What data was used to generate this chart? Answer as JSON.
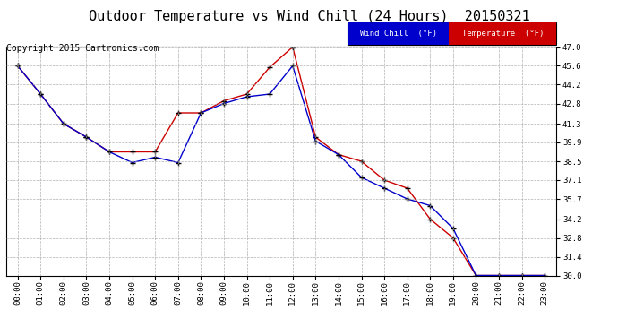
{
  "title": "Outdoor Temperature vs Wind Chill (24 Hours)  20150321",
  "copyright": "Copyright 2015 Cartronics.com",
  "background_color": "#ffffff",
  "plot_bg_color": "#ffffff",
  "grid_color": "#aaaaaa",
  "x_labels": [
    "00:00",
    "01:00",
    "02:00",
    "03:00",
    "04:00",
    "05:00",
    "06:00",
    "07:00",
    "08:00",
    "09:00",
    "10:00",
    "11:00",
    "12:00",
    "13:00",
    "14:00",
    "15:00",
    "16:00",
    "17:00",
    "18:00",
    "19:00",
    "20:00",
    "21:00",
    "22:00",
    "23:00"
  ],
  "temperature": [
    45.6,
    43.5,
    41.3,
    40.3,
    39.2,
    39.2,
    39.2,
    42.1,
    42.1,
    43.0,
    43.5,
    45.5,
    47.0,
    40.3,
    39.0,
    38.5,
    37.1,
    36.5,
    34.2,
    32.8,
    30.0,
    30.0,
    30.0,
    30.0
  ],
  "wind_chill": [
    45.6,
    43.5,
    41.3,
    40.3,
    39.2,
    38.4,
    38.8,
    38.4,
    42.1,
    42.8,
    43.3,
    43.5,
    45.6,
    40.0,
    39.0,
    37.3,
    36.5,
    35.7,
    35.2,
    33.5,
    30.0,
    30.0,
    30.0,
    30.0
  ],
  "temp_color": "#cc0000",
  "wind_color": "#0000cc",
  "ylim_min": 30.0,
  "ylim_max": 47.0,
  "yticks": [
    30.0,
    31.4,
    32.8,
    34.2,
    35.7,
    37.1,
    38.5,
    39.9,
    41.3,
    42.8,
    44.2,
    45.6,
    47.0
  ],
  "title_fontsize": 11,
  "copyright_fontsize": 7,
  "legend_wind_label": "Wind Chill  (°F)",
  "legend_temp_label": "Temperature  (°F)"
}
